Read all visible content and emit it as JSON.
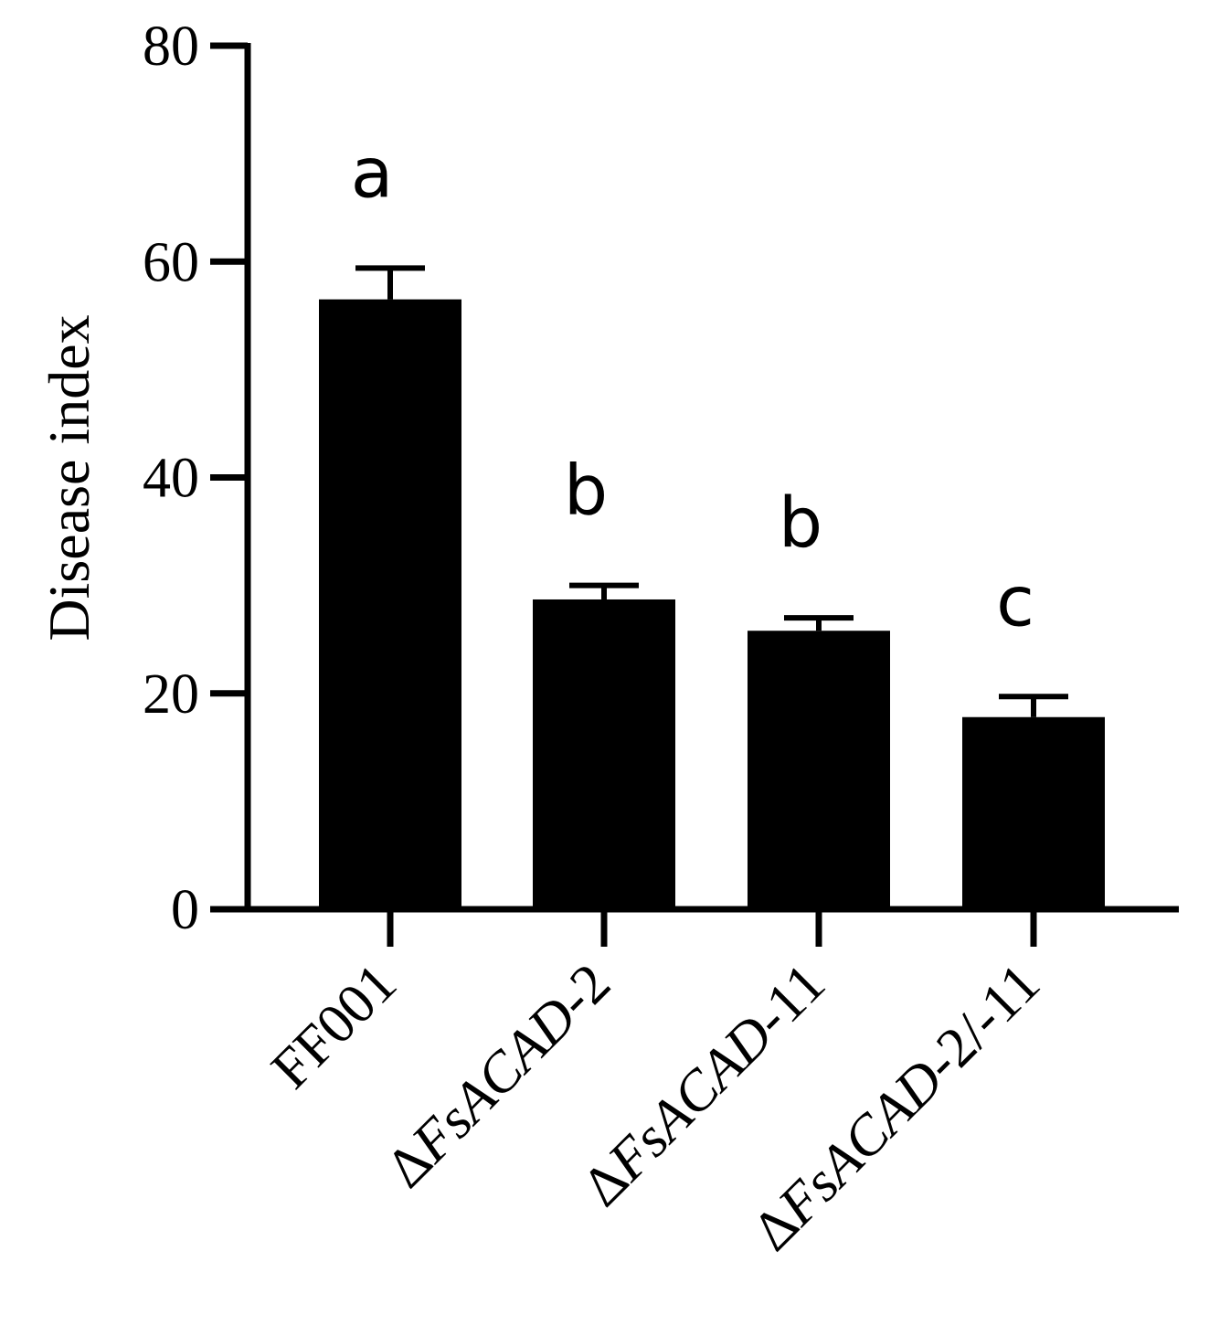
{
  "chart_data": {
    "type": "bar",
    "title": "",
    "xlabel": "",
    "ylabel": "Disease index",
    "ylim": [
      0,
      80
    ],
    "yticks": [
      0,
      20,
      40,
      60,
      80
    ],
    "grid": false,
    "legend": "none",
    "categories": [
      {
        "prefix": "",
        "italic": "",
        "suffix": "FF001"
      },
      {
        "prefix": "Δ",
        "italic": "FsACAD",
        "suffix": "-2"
      },
      {
        "prefix": "Δ",
        "italic": "FsACAD",
        "suffix": "-11"
      },
      {
        "prefix": "Δ",
        "italic": "FsACAD",
        "suffix": "-2/-11"
      }
    ],
    "values": [
      56.5,
      28.7,
      25.8,
      17.8
    ],
    "errors": [
      2.9,
      1.3,
      1.2,
      1.9
    ],
    "significance": [
      "a",
      "b",
      "b",
      "c"
    ],
    "bar_color": "#000000"
  }
}
